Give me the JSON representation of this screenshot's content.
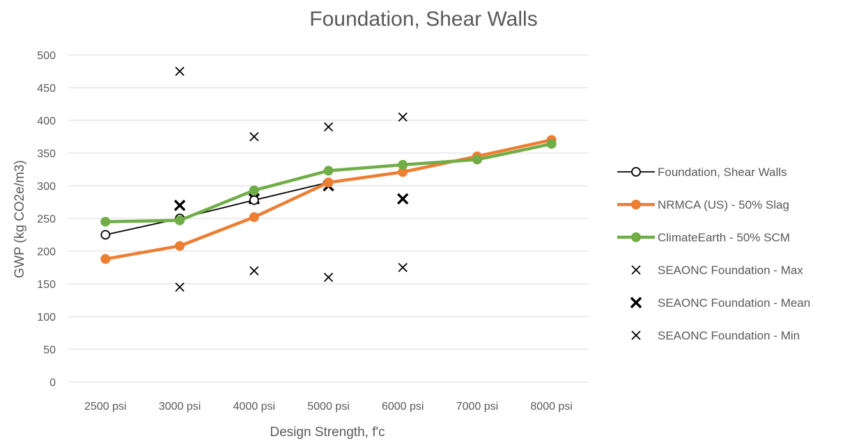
{
  "chart_data": {
    "type": "line",
    "title": "Foundation, Shear Walls",
    "xlabel": "Design Strength, f'c",
    "ylabel": "GWP (kg CO2e/m3)",
    "ylim": [
      0,
      500
    ],
    "y_ticks": [
      0,
      50,
      100,
      150,
      200,
      250,
      300,
      350,
      400,
      450,
      500
    ],
    "grid": true,
    "legend_position": "right",
    "categories": [
      "2500 psi",
      "3000 psi",
      "4000 psi",
      "5000 psi",
      "6000 psi",
      "7000 psi",
      "8000 psi"
    ],
    "series": [
      {
        "name": "Foundation, Shear Walls",
        "style": "line-open-circle",
        "color": "#000000",
        "values": [
          225,
          250,
          278,
          305,
          null,
          null,
          null
        ]
      },
      {
        "name": "NRMCA (US) - 50% Slag",
        "style": "line-filled-circle",
        "color": "#ed7d31",
        "values": [
          188,
          208,
          252,
          305,
          321,
          345,
          370
        ]
      },
      {
        "name": "ClimateEarth - 50% SCM",
        "style": "line-filled-circle",
        "color": "#70ad47",
        "values": [
          245,
          247,
          293,
          323,
          332,
          340,
          364
        ]
      },
      {
        "name": "SEAONC Foundation - Max",
        "style": "marker-x-thin",
        "color": "#000000",
        "values": [
          null,
          475,
          375,
          390,
          405,
          null,
          null
        ]
      },
      {
        "name": "SEAONC Foundation - Mean",
        "style": "marker-x-bold",
        "color": "#000000",
        "values": [
          null,
          270,
          280,
          300,
          280,
          null,
          null
        ]
      },
      {
        "name": "SEAONC Foundation - Min",
        "style": "marker-x-thin",
        "color": "#000000",
        "values": [
          null,
          145,
          170,
          160,
          175,
          null,
          null
        ]
      }
    ]
  }
}
